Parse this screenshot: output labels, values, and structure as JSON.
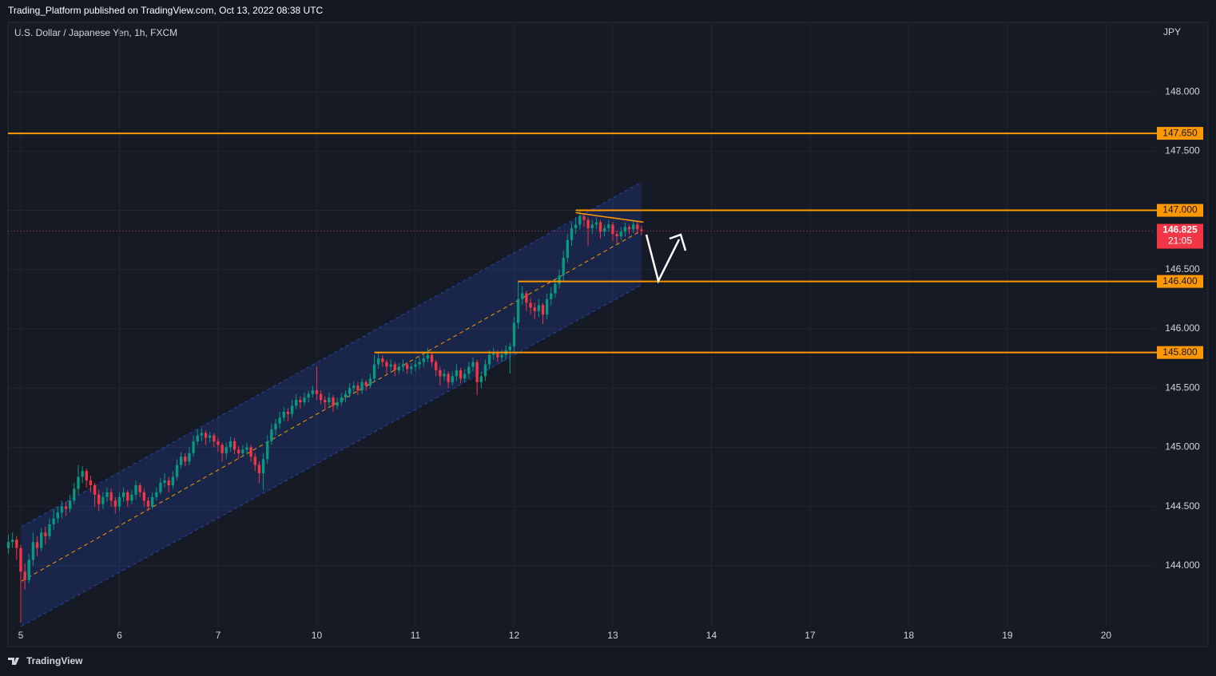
{
  "chart_data": {
    "type": "candlestick",
    "title": "Trading_Platform published on TradingView.com, Oct 13, 2022 08:38 UTC",
    "subtitle": "U.S. Dollar / Japanese Yen, 1h, FXCM",
    "y_axis_label": "JPY",
    "footer": "TradingView",
    "up_color": "#089981",
    "down_color": "#f23645",
    "grid": true,
    "xlim": [
      -3.1,
      288.4
    ],
    "ylim": [
      143.487,
      148.587
    ],
    "xticks": [
      {
        "value": 0,
        "label": "5"
      },
      {
        "value": 24,
        "label": "6"
      },
      {
        "value": 48,
        "label": "7"
      },
      {
        "value": 72,
        "label": "10"
      },
      {
        "value": 96,
        "label": "11"
      },
      {
        "value": 120,
        "label": "12"
      },
      {
        "value": 144,
        "label": "13"
      },
      {
        "value": 168,
        "label": "14"
      },
      {
        "value": 192,
        "label": "17"
      },
      {
        "value": 216,
        "label": "18"
      },
      {
        "value": 240,
        "label": "19"
      },
      {
        "value": 264,
        "label": "20"
      }
    ],
    "yticks": [
      {
        "value": 144,
        "label": "144.000"
      },
      {
        "value": 144.5,
        "label": "144.500"
      },
      {
        "value": 145,
        "label": "145.000"
      },
      {
        "value": 145.5,
        "label": "145.500"
      },
      {
        "value": 146,
        "label": "146.000"
      },
      {
        "value": 146.5,
        "label": "146.500"
      },
      {
        "value": 147,
        "label": "147.000"
      },
      {
        "value": 147.5,
        "label": "147.500"
      },
      {
        "value": 148,
        "label": "148.000"
      }
    ],
    "levels": [
      {
        "value": 147.65,
        "label": "147.650",
        "color": "#ff9800"
      },
      {
        "value": 147,
        "label": "147.000",
        "x_start": 135,
        "color": "#ff9800"
      },
      {
        "value": 146.4,
        "label": "146.400",
        "x_start": 121,
        "color": "#ff9800"
      },
      {
        "value": 145.8,
        "label": "145.800",
        "x_start": 86,
        "color": "#ff9800"
      }
    ],
    "current": {
      "value": 146.825,
      "label": "146.825",
      "countdown": "21:05",
      "color": "#f23645"
    },
    "channel": {
      "x": [
        0.2,
        151
      ],
      "upper": [
        144.33,
        147.24
      ],
      "lower": [
        143.49,
        146.37
      ],
      "mid": [
        143.87,
        146.83
      ]
    },
    "trendline": {
      "x": [
        135,
        151.5
      ],
      "y": [
        146.98,
        146.9
      ]
    },
    "x": [
      -3,
      -2,
      -1,
      0,
      1,
      2,
      3,
      4,
      5,
      6,
      7,
      8,
      9,
      10,
      11,
      12,
      13,
      14,
      15,
      16,
      17,
      18,
      19,
      20,
      21,
      22,
      23,
      24,
      25,
      26,
      27,
      28,
      29,
      30,
      31,
      32,
      33,
      34,
      35,
      36,
      37,
      38,
      39,
      40,
      41,
      42,
      43,
      44,
      45,
      46,
      47,
      48,
      49,
      50,
      51,
      52,
      53,
      54,
      55,
      56,
      57,
      58,
      59,
      60,
      61,
      62,
      63,
      64,
      65,
      66,
      67,
      68,
      69,
      70,
      71,
      72,
      73,
      74,
      75,
      76,
      77,
      78,
      79,
      80,
      81,
      82,
      83,
      84,
      85,
      86,
      87,
      88,
      89,
      90,
      91,
      92,
      93,
      94,
      95,
      96,
      97,
      98,
      99,
      100,
      101,
      102,
      103,
      104,
      105,
      106,
      107,
      108,
      109,
      110,
      111,
      112,
      113,
      114,
      115,
      116,
      117,
      118,
      119,
      120,
      121,
      122,
      123,
      124,
      125,
      126,
      127,
      128,
      129,
      130,
      131,
      132,
      133,
      134,
      135,
      136,
      137,
      138,
      139,
      140,
      141,
      142,
      143,
      144,
      145,
      146,
      147,
      148,
      149,
      150,
      151
    ],
    "ohlc": [
      [
        144.15,
        144.26,
        144.1,
        144.2
      ],
      [
        144.2,
        144.28,
        144.15,
        144.22
      ],
      [
        144.22,
        144.25,
        144.05,
        144.15
      ],
      [
        144.15,
        144.18,
        143.52,
        143.95
      ],
      [
        143.95,
        144.02,
        143.8,
        143.88
      ],
      [
        143.88,
        144.1,
        143.85,
        144.05
      ],
      [
        144.05,
        144.28,
        144.0,
        144.2
      ],
      [
        144.2,
        144.25,
        144.08,
        144.15
      ],
      [
        144.15,
        144.32,
        144.12,
        144.28
      ],
      [
        144.28,
        144.33,
        144.18,
        144.25
      ],
      [
        144.25,
        144.4,
        144.22,
        144.35
      ],
      [
        144.35,
        144.48,
        144.3,
        144.4
      ],
      [
        144.4,
        144.5,
        144.36,
        144.45
      ],
      [
        144.45,
        144.55,
        144.4,
        144.5
      ],
      [
        144.5,
        144.54,
        144.42,
        144.48
      ],
      [
        144.48,
        144.6,
        144.45,
        144.55
      ],
      [
        144.55,
        144.7,
        144.52,
        144.65
      ],
      [
        144.65,
        144.85,
        144.6,
        144.75
      ],
      [
        144.75,
        144.84,
        144.7,
        144.8
      ],
      [
        144.8,
        144.82,
        144.66,
        144.72
      ],
      [
        144.72,
        144.76,
        144.62,
        144.68
      ],
      [
        144.68,
        144.7,
        144.5,
        144.6
      ],
      [
        144.6,
        144.64,
        144.46,
        144.52
      ],
      [
        144.52,
        144.62,
        144.48,
        144.58
      ],
      [
        144.58,
        144.66,
        144.54,
        144.62
      ],
      [
        144.62,
        144.65,
        144.5,
        144.55
      ],
      [
        144.55,
        144.58,
        144.44,
        144.5
      ],
      [
        144.5,
        144.62,
        144.46,
        144.58
      ],
      [
        144.58,
        144.66,
        144.54,
        144.62
      ],
      [
        144.62,
        144.64,
        144.5,
        144.55
      ],
      [
        144.55,
        144.64,
        144.52,
        144.6
      ],
      [
        144.6,
        144.72,
        144.56,
        144.68
      ],
      [
        144.68,
        144.7,
        144.58,
        144.62
      ],
      [
        144.62,
        144.65,
        144.5,
        144.55
      ],
      [
        144.55,
        144.58,
        144.46,
        144.5
      ],
      [
        144.5,
        144.62,
        144.48,
        144.58
      ],
      [
        144.58,
        144.66,
        144.55,
        144.62
      ],
      [
        144.62,
        144.74,
        144.6,
        144.7
      ],
      [
        144.7,
        144.78,
        144.66,
        144.72
      ],
      [
        144.72,
        144.75,
        144.62,
        144.68
      ],
      [
        144.68,
        144.8,
        144.65,
        144.75
      ],
      [
        144.75,
        144.9,
        144.72,
        144.85
      ],
      [
        144.85,
        144.96,
        144.82,
        144.92
      ],
      [
        144.92,
        144.95,
        144.84,
        144.88
      ],
      [
        144.88,
        145.0,
        144.85,
        144.95
      ],
      [
        144.95,
        145.1,
        144.92,
        145.05
      ],
      [
        145.05,
        145.15,
        145.02,
        145.1
      ],
      [
        145.1,
        145.16,
        145.05,
        145.12
      ],
      [
        145.12,
        145.14,
        145.02,
        145.08
      ],
      [
        145.08,
        145.13,
        145.04,
        145.1
      ],
      [
        145.1,
        145.12,
        145.0,
        145.05
      ],
      [
        145.05,
        145.08,
        144.96,
        145.02
      ],
      [
        145.02,
        145.04,
        144.88,
        144.95
      ],
      [
        144.95,
        145.04,
        144.9,
        145.0
      ],
      [
        145.0,
        145.09,
        144.96,
        145.05
      ],
      [
        145.05,
        145.08,
        144.94,
        144.98
      ],
      [
        144.98,
        145.01,
        144.9,
        144.95
      ],
      [
        144.95,
        145.02,
        144.92,
        144.98
      ],
      [
        144.98,
        145.04,
        144.94,
        145.0
      ],
      [
        145.0,
        145.02,
        144.88,
        144.92
      ],
      [
        144.92,
        144.95,
        144.8,
        144.85
      ],
      [
        144.85,
        144.88,
        144.7,
        144.78
      ],
      [
        144.78,
        144.95,
        144.64,
        144.9
      ],
      [
        144.9,
        145.1,
        144.86,
        145.05
      ],
      [
        145.05,
        145.2,
        145.02,
        145.15
      ],
      [
        145.15,
        145.24,
        145.1,
        145.2
      ],
      [
        145.2,
        145.3,
        145.16,
        145.25
      ],
      [
        145.25,
        145.34,
        145.22,
        145.3
      ],
      [
        145.3,
        145.33,
        145.22,
        145.28
      ],
      [
        145.28,
        145.4,
        145.25,
        145.35
      ],
      [
        145.35,
        145.45,
        145.32,
        145.4
      ],
      [
        145.4,
        145.43,
        145.33,
        145.38
      ],
      [
        145.38,
        145.46,
        145.35,
        145.42
      ],
      [
        145.42,
        145.48,
        145.38,
        145.45
      ],
      [
        145.45,
        145.52,
        145.42,
        145.48
      ],
      [
        145.48,
        145.68,
        145.4,
        145.45
      ],
      [
        145.45,
        145.48,
        145.36,
        145.4
      ],
      [
        145.4,
        145.43,
        145.32,
        145.38
      ],
      [
        145.38,
        145.46,
        145.35,
        145.42
      ],
      [
        145.42,
        145.44,
        145.3,
        145.35
      ],
      [
        145.35,
        145.42,
        145.32,
        145.38
      ],
      [
        145.38,
        145.46,
        145.35,
        145.42
      ],
      [
        145.42,
        145.48,
        145.38,
        145.45
      ],
      [
        145.45,
        145.54,
        145.42,
        145.5
      ],
      [
        145.5,
        145.56,
        145.46,
        145.52
      ],
      [
        145.52,
        145.55,
        145.44,
        145.48
      ],
      [
        145.48,
        145.58,
        145.45,
        145.55
      ],
      [
        145.55,
        145.57,
        145.48,
        145.52
      ],
      [
        145.52,
        145.62,
        145.5,
        145.58
      ],
      [
        145.58,
        145.78,
        145.55,
        145.7
      ],
      [
        145.7,
        145.8,
        145.66,
        145.75
      ],
      [
        145.75,
        145.78,
        145.68,
        145.72
      ],
      [
        145.72,
        145.74,
        145.62,
        145.68
      ],
      [
        145.68,
        145.74,
        145.64,
        145.7
      ],
      [
        145.7,
        145.72,
        145.6,
        145.65
      ],
      [
        145.65,
        145.71,
        145.62,
        145.68
      ],
      [
        145.68,
        145.74,
        145.64,
        145.7
      ],
      [
        145.7,
        145.72,
        145.62,
        145.66
      ],
      [
        145.66,
        145.71,
        145.62,
        145.68
      ],
      [
        145.68,
        145.74,
        145.64,
        145.7
      ],
      [
        145.7,
        145.76,
        145.66,
        145.72
      ],
      [
        145.72,
        145.79,
        145.68,
        145.75
      ],
      [
        145.75,
        145.84,
        145.72,
        145.78
      ],
      [
        145.78,
        145.8,
        145.68,
        145.72
      ],
      [
        145.72,
        145.74,
        145.6,
        145.65
      ],
      [
        145.65,
        145.68,
        145.52,
        145.6
      ],
      [
        145.6,
        145.66,
        145.56,
        145.62
      ],
      [
        145.62,
        145.64,
        145.5,
        145.55
      ],
      [
        145.55,
        145.64,
        145.52,
        145.6
      ],
      [
        145.6,
        145.7,
        145.56,
        145.65
      ],
      [
        145.65,
        145.67,
        145.54,
        145.58
      ],
      [
        145.58,
        145.66,
        145.55,
        145.62
      ],
      [
        145.62,
        145.72,
        145.58,
        145.68
      ],
      [
        145.68,
        145.76,
        145.64,
        145.72
      ],
      [
        145.72,
        145.74,
        145.44,
        145.55
      ],
      [
        145.55,
        145.64,
        145.5,
        145.6
      ],
      [
        145.6,
        145.74,
        145.56,
        145.7
      ],
      [
        145.7,
        145.82,
        145.66,
        145.78
      ],
      [
        145.78,
        145.84,
        145.74,
        145.8
      ],
      [
        145.8,
        145.82,
        145.72,
        145.76
      ],
      [
        145.76,
        145.82,
        145.72,
        145.78
      ],
      [
        145.78,
        145.86,
        145.74,
        145.82
      ],
      [
        145.82,
        145.88,
        145.62,
        145.85
      ],
      [
        145.85,
        146.1,
        145.8,
        146.05
      ],
      [
        146.05,
        146.4,
        146.0,
        146.25
      ],
      [
        146.25,
        146.36,
        146.2,
        146.3
      ],
      [
        146.3,
        146.32,
        146.15,
        146.22
      ],
      [
        146.22,
        146.26,
        146.12,
        146.18
      ],
      [
        146.18,
        146.22,
        146.08,
        146.15
      ],
      [
        146.15,
        146.25,
        146.1,
        146.2
      ],
      [
        146.2,
        146.22,
        146.04,
        146.12
      ],
      [
        146.12,
        146.3,
        146.08,
        146.25
      ],
      [
        146.25,
        146.35,
        146.2,
        146.3
      ],
      [
        146.3,
        146.42,
        146.26,
        146.38
      ],
      [
        146.38,
        146.5,
        146.34,
        146.45
      ],
      [
        146.45,
        146.66,
        146.4,
        146.6
      ],
      [
        146.6,
        146.8,
        146.56,
        146.75
      ],
      [
        146.75,
        146.9,
        146.7,
        146.85
      ],
      [
        146.85,
        146.94,
        146.8,
        146.88
      ],
      [
        146.88,
        146.99,
        146.84,
        146.95
      ],
      [
        146.95,
        146.98,
        146.86,
        146.92
      ],
      [
        146.92,
        146.94,
        146.7,
        146.85
      ],
      [
        146.85,
        146.92,
        146.8,
        146.88
      ],
      [
        146.88,
        146.94,
        146.84,
        146.9
      ],
      [
        146.9,
        146.92,
        146.76,
        146.82
      ],
      [
        146.82,
        146.88,
        146.78,
        146.85
      ],
      [
        146.85,
        146.92,
        146.82,
        146.88
      ],
      [
        146.88,
        146.9,
        146.74,
        146.8
      ],
      [
        146.8,
        146.83,
        146.72,
        146.78
      ],
      [
        146.78,
        146.86,
        146.75,
        146.82
      ],
      [
        146.82,
        146.9,
        146.78,
        146.86
      ],
      [
        146.86,
        146.88,
        146.8,
        146.84
      ],
      [
        146.84,
        146.92,
        146.81,
        146.88
      ],
      [
        146.88,
        146.9,
        146.8,
        146.84
      ],
      [
        146.84,
        146.87,
        146.79,
        146.825
      ]
    ]
  }
}
